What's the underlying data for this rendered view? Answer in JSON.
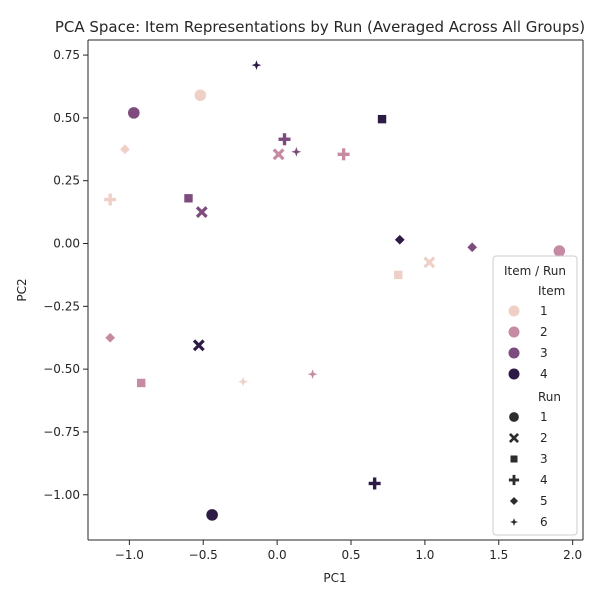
{
  "chart_data": {
    "type": "scatter",
    "title": "PCA Space: Item Representations by Run (Averaged Across All Groups)",
    "xlabel": "PC1",
    "ylabel": "PC2",
    "xlim": [
      -1.28,
      2.07
    ],
    "ylim": [
      -1.18,
      0.81
    ],
    "xticks": [
      -1.0,
      -0.5,
      0.0,
      0.5,
      1.0,
      1.5,
      2.0
    ],
    "xtick_labels": [
      "−1.0",
      "−0.5",
      "0.0",
      "0.5",
      "1.0",
      "1.5",
      "2.0"
    ],
    "yticks": [
      -1.0,
      -0.75,
      -0.5,
      -0.25,
      0.0,
      0.25,
      0.5,
      0.75
    ],
    "ytick_labels": [
      "−1.00",
      "−0.75",
      "−0.50",
      "−0.25",
      "0.00",
      "0.25",
      "0.50",
      "0.75"
    ],
    "grid": false,
    "legend": {
      "title": "Item / Run",
      "placement": "lower-right",
      "hue_title": "Item",
      "hue_entries": [
        {
          "label": "1",
          "color": "#efd0c7"
        },
        {
          "label": "2",
          "color": "#c68aa3"
        },
        {
          "label": "3",
          "color": "#7d4b7d"
        },
        {
          "label": "4",
          "color": "#2d1b46"
        }
      ],
      "style_title": "Run",
      "style_entries": [
        {
          "label": "1",
          "marker": "circle"
        },
        {
          "label": "2",
          "marker": "x"
        },
        {
          "label": "3",
          "marker": "square"
        },
        {
          "label": "4",
          "marker": "plus"
        },
        {
          "label": "5",
          "marker": "diamond"
        },
        {
          "label": "6",
          "marker": "star"
        }
      ]
    },
    "points": [
      {
        "item": "1",
        "run": "1",
        "x": -0.52,
        "y": 0.59
      },
      {
        "item": "1",
        "run": "2",
        "x": 1.03,
        "y": -0.075
      },
      {
        "item": "1",
        "run": "3",
        "x": 0.82,
        "y": -0.125
      },
      {
        "item": "1",
        "run": "4",
        "x": -1.13,
        "y": 0.175
      },
      {
        "item": "1",
        "run": "5",
        "x": -1.03,
        "y": 0.375
      },
      {
        "item": "1",
        "run": "6",
        "x": -0.23,
        "y": -0.55
      },
      {
        "item": "2",
        "run": "1",
        "x": 1.91,
        "y": -0.03
      },
      {
        "item": "2",
        "run": "2",
        "x": 0.01,
        "y": 0.355
      },
      {
        "item": "2",
        "run": "3",
        "x": -0.92,
        "y": -0.555
      },
      {
        "item": "2",
        "run": "4",
        "x": 0.45,
        "y": 0.355
      },
      {
        "item": "2",
        "run": "5",
        "x": -1.13,
        "y": -0.375
      },
      {
        "item": "2",
        "run": "6",
        "x": 0.24,
        "y": -0.52
      },
      {
        "item": "3",
        "run": "1",
        "x": -0.97,
        "y": 0.52
      },
      {
        "item": "3",
        "run": "2",
        "x": -0.51,
        "y": 0.125
      },
      {
        "item": "3",
        "run": "3",
        "x": -0.6,
        "y": 0.18
      },
      {
        "item": "3",
        "run": "4",
        "x": 0.05,
        "y": 0.415
      },
      {
        "item": "3",
        "run": "5",
        "x": 1.32,
        "y": -0.015
      },
      {
        "item": "3",
        "run": "6",
        "x": 0.13,
        "y": 0.365
      },
      {
        "item": "4",
        "run": "1",
        "x": -0.44,
        "y": -1.08
      },
      {
        "item": "4",
        "run": "2",
        "x": -0.53,
        "y": -0.405
      },
      {
        "item": "4",
        "run": "3",
        "x": 0.71,
        "y": 0.495
      },
      {
        "item": "4",
        "run": "4",
        "x": 0.66,
        "y": -0.955
      },
      {
        "item": "4",
        "run": "5",
        "x": 0.83,
        "y": 0.015
      },
      {
        "item": "4",
        "run": "6",
        "x": -0.14,
        "y": 0.71
      }
    ]
  }
}
